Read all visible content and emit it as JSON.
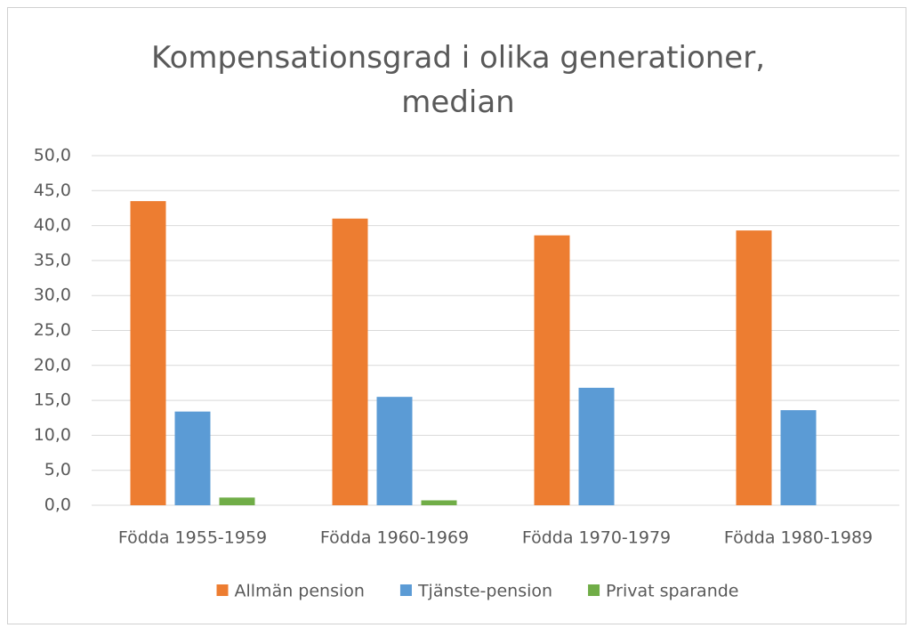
{
  "chart_data": {
    "type": "bar",
    "title": "Kompensationsgrad i olika generationer, median",
    "categories": [
      "Födda 1955-1959",
      "Födda 1960-1969",
      "Födda 1970-1979",
      "Födda 1980-1989"
    ],
    "series": [
      {
        "name": "Allmän pension",
        "color": "#ed7d31",
        "values": [
          43.5,
          41.0,
          38.6,
          39.3
        ]
      },
      {
        "name": "Tjänste-pension",
        "color": "#5b9bd5",
        "values": [
          13.4,
          15.5,
          16.8,
          13.6
        ]
      },
      {
        "name": "Privat sparande",
        "color": "#70ad47",
        "values": [
          1.1,
          0.7,
          0,
          0
        ]
      }
    ],
    "ylim": [
      0,
      50
    ],
    "yticks": [
      {
        "value": 0,
        "label": "0,0"
      },
      {
        "value": 5,
        "label": "5,0"
      },
      {
        "value": 10,
        "label": "10,0"
      },
      {
        "value": 15,
        "label": "15,0"
      },
      {
        "value": 20,
        "label": "20,0"
      },
      {
        "value": 25,
        "label": "25,0"
      },
      {
        "value": 30,
        "label": "30,0"
      },
      {
        "value": 35,
        "label": "35,0"
      },
      {
        "value": 40,
        "label": "40,0"
      },
      {
        "value": 45,
        "label": "45,0"
      },
      {
        "value": 50,
        "label": "50,0"
      }
    ],
    "grid": true,
    "legend": "bottom"
  }
}
